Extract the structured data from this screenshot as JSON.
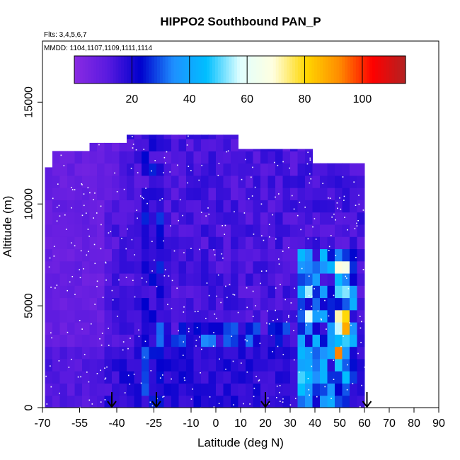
{
  "chart_data": {
    "type": "heatmap",
    "title": "HIPPO2 Southbound PAN_P",
    "flights_note": "Flts: 3,4,5,6,7",
    "dates_note": "MMDD: 1104,1107,1109,1111,1114",
    "xlabel": "Latitude (deg N)",
    "ylabel": "Altitude (m)",
    "xlim": [
      -70,
      90
    ],
    "ylim": [
      0,
      18000
    ],
    "x_ticks": [
      "-70",
      "-55",
      "-40",
      "-25",
      "-10",
      "0",
      "10",
      "20",
      "30",
      "40",
      "50",
      "60",
      "70",
      "80",
      "90"
    ],
    "y_ticks": [
      "0",
      "5000",
      "10000",
      "15000"
    ],
    "colorbar": {
      "range": [
        0,
        115
      ],
      "ticks": [
        "20",
        "40",
        "60",
        "80",
        "100"
      ],
      "colors": [
        "#8a2be2",
        "#5a1ae0",
        "#0000cd",
        "#1e90ff",
        "#00bfff",
        "#e0ffff",
        "#ffffe0",
        "#ffd700",
        "#ff8c00",
        "#ff0000",
        "#b22222"
      ]
    },
    "arrow_latitudes": [
      -42,
      -24,
      20,
      61
    ],
    "data_extent": {
      "lat_min": -69,
      "lat_max": 60,
      "alt_max": 13800
    }
  }
}
